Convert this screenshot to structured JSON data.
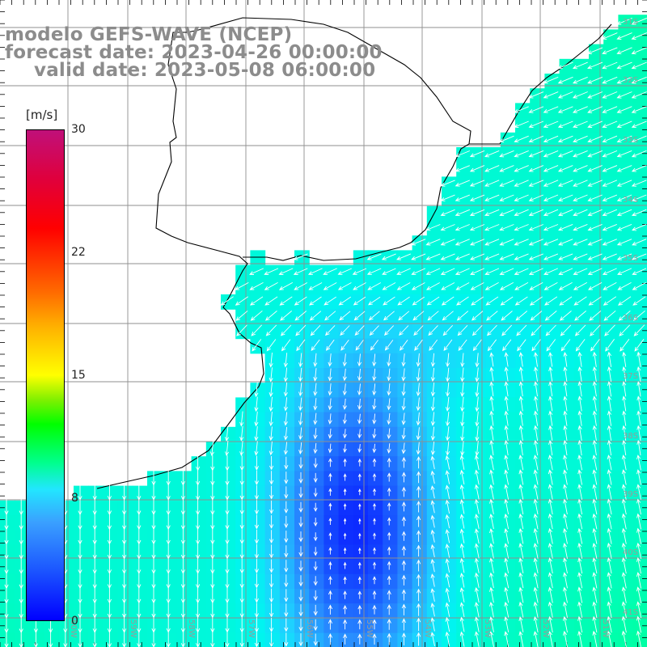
{
  "title": {
    "line1": "modelo GEFS-WAVE (NCEP)",
    "line2": "forecast date: 2023-04-26 00:00:00",
    "line3": "valid date: 2023-05-08 06:00:00"
  },
  "colorbar": {
    "units": "[m/s]",
    "ticks": [
      "30",
      "22",
      "15",
      "8",
      "0"
    ],
    "tick_values": [
      30,
      22,
      15,
      8,
      0
    ],
    "min": 0,
    "max": 30,
    "colors": [
      "#0000ff",
      "#1e5cff",
      "#3aa0ff",
      "#22e6ff",
      "#00ff90",
      "#00ff00",
      "#ffff00",
      "#ff6a00",
      "#ff0000",
      "#c0107a"
    ]
  },
  "map": {
    "lat_labels": [
      "31S",
      "32S",
      "33S",
      "34S",
      "35S",
      "36S",
      "37S",
      "38S",
      "39S",
      "40S",
      "41S"
    ],
    "lon_labels": [
      "60W",
      "59W",
      "58W",
      "57W",
      "56W",
      "55W",
      "54W",
      "53W",
      "52W",
      "51W"
    ],
    "land_color": "#ffffff",
    "grid_color": "#9a9a9a",
    "coastline_color": "#000000",
    "arrow_color": "#ffffff"
  }
}
